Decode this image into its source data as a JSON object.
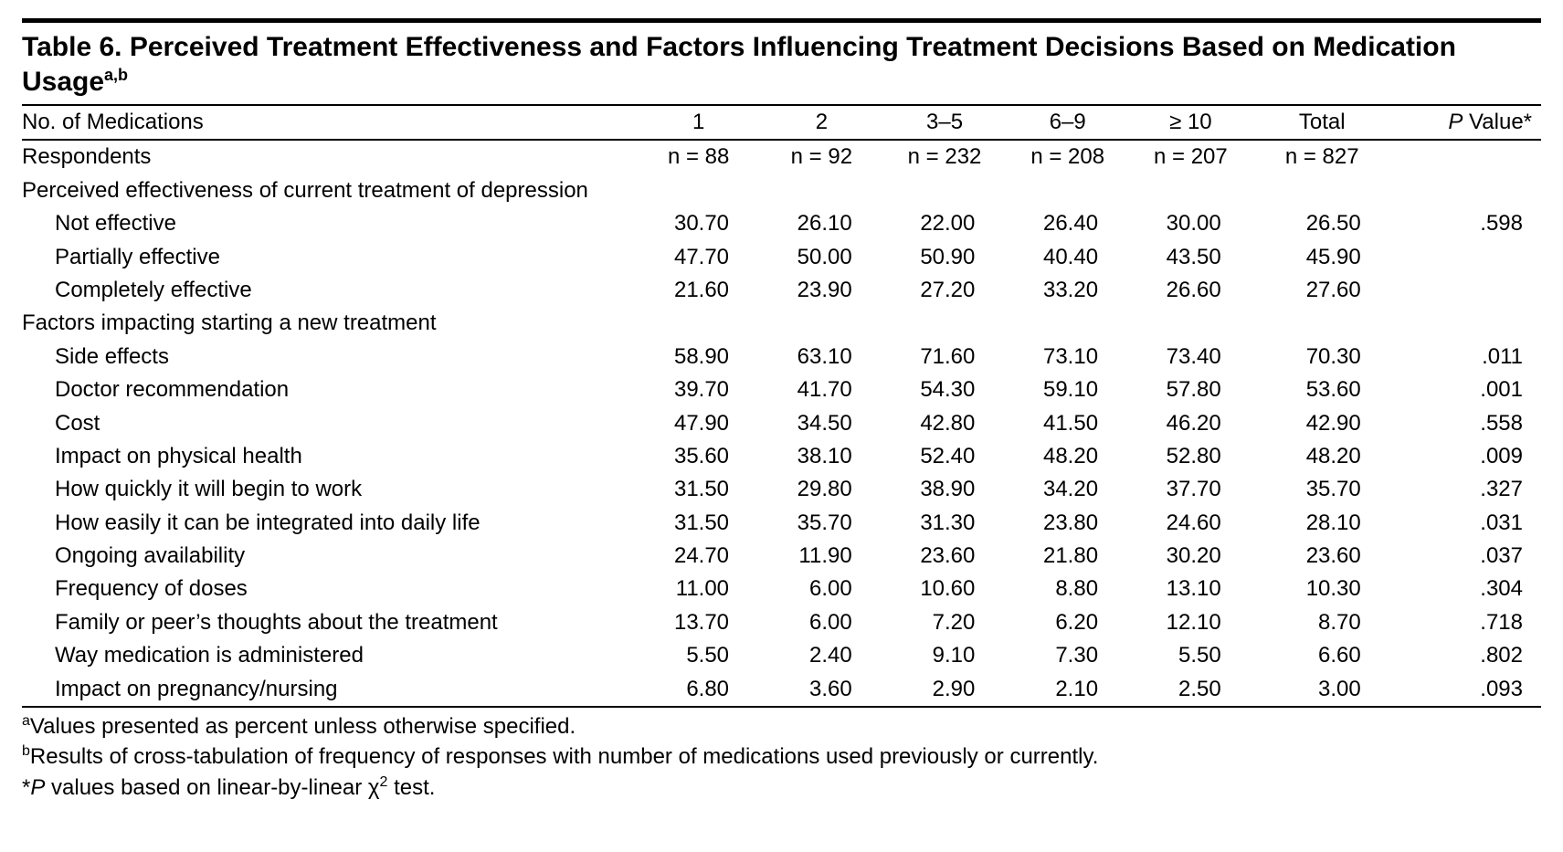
{
  "title_html": "Table 6. Perceived Treatment Effectiveness and Factors Influencing Treatment Decisions Based on Medication Usage<sup>a,b</sup>",
  "header": {
    "rowlabel": "No. of Medications",
    "cols": [
      "1",
      "2",
      "3–5",
      "6–9",
      "≥ 10",
      "Total"
    ],
    "pval_html": "<span class=\"ital\">P</span> Value*"
  },
  "respondents": {
    "label": "Respondents",
    "values": [
      "n = 88",
      "n = 92",
      "n = 232",
      "n = 208",
      "n = 207",
      "n = 827"
    ]
  },
  "sections": [
    {
      "heading": "Perceived effectiveness of current treatment of depression",
      "rows": [
        {
          "label": "Not effective",
          "v": [
            "30.70",
            "26.10",
            "22.00",
            "26.40",
            "30.00",
            "26.50"
          ],
          "p": ".598"
        },
        {
          "label": "Partially effective",
          "v": [
            "47.70",
            "50.00",
            "50.90",
            "40.40",
            "43.50",
            "45.90"
          ],
          "p": ""
        },
        {
          "label": "Completely effective",
          "v": [
            "21.60",
            "23.90",
            "27.20",
            "33.20",
            "26.60",
            "27.60"
          ],
          "p": ""
        }
      ]
    },
    {
      "heading": "Factors impacting starting a new treatment",
      "rows": [
        {
          "label": "Side effects",
          "v": [
            "58.90",
            "63.10",
            "71.60",
            "73.10",
            "73.40",
            "70.30"
          ],
          "p": ".011"
        },
        {
          "label": "Doctor recommendation",
          "v": [
            "39.70",
            "41.70",
            "54.30",
            "59.10",
            "57.80",
            "53.60"
          ],
          "p": ".001"
        },
        {
          "label": "Cost",
          "v": [
            "47.90",
            "34.50",
            "42.80",
            "41.50",
            "46.20",
            "42.90"
          ],
          "p": ".558"
        },
        {
          "label": "Impact on physical health",
          "v": [
            "35.60",
            "38.10",
            "52.40",
            "48.20",
            "52.80",
            "48.20"
          ],
          "p": ".009"
        },
        {
          "label": "How quickly it will begin to work",
          "v": [
            "31.50",
            "29.80",
            "38.90",
            "34.20",
            "37.70",
            "35.70"
          ],
          "p": ".327"
        },
        {
          "label": "How easily it can be integrated into daily life",
          "v": [
            "31.50",
            "35.70",
            "31.30",
            "23.80",
            "24.60",
            "28.10"
          ],
          "p": ".031"
        },
        {
          "label": "Ongoing availability",
          "v": [
            "24.70",
            "11.90",
            "23.60",
            "21.80",
            "30.20",
            "23.60"
          ],
          "p": ".037"
        },
        {
          "label": "Frequency of doses",
          "v": [
            "11.00",
            "6.00",
            "10.60",
            "8.80",
            "13.10",
            "10.30"
          ],
          "p": ".304"
        },
        {
          "label": "Family or peer’s thoughts about the treatment",
          "v": [
            "13.70",
            "6.00",
            "7.20",
            "6.20",
            "12.10",
            "8.70"
          ],
          "p": ".718"
        },
        {
          "label": "Way medication is administered",
          "v": [
            "5.50",
            "2.40",
            "9.10",
            "7.30",
            "5.50",
            "6.60"
          ],
          "p": ".802"
        },
        {
          "label": "Impact on pregnancy/nursing",
          "v": [
            "6.80",
            "3.60",
            "2.90",
            "2.10",
            "2.50",
            "3.00"
          ],
          "p": ".093"
        }
      ]
    }
  ],
  "footnotes": [
    "<sup>a</sup>Values presented as percent unless otherwise specified.",
    "<sup>b</sup>Results of cross-tabulation of frequency of responses with number of medications used previously or currently.",
    "*<span class=\"ital\">P</span> values based on linear-by-linear χ<sup>2</sup> test."
  ]
}
